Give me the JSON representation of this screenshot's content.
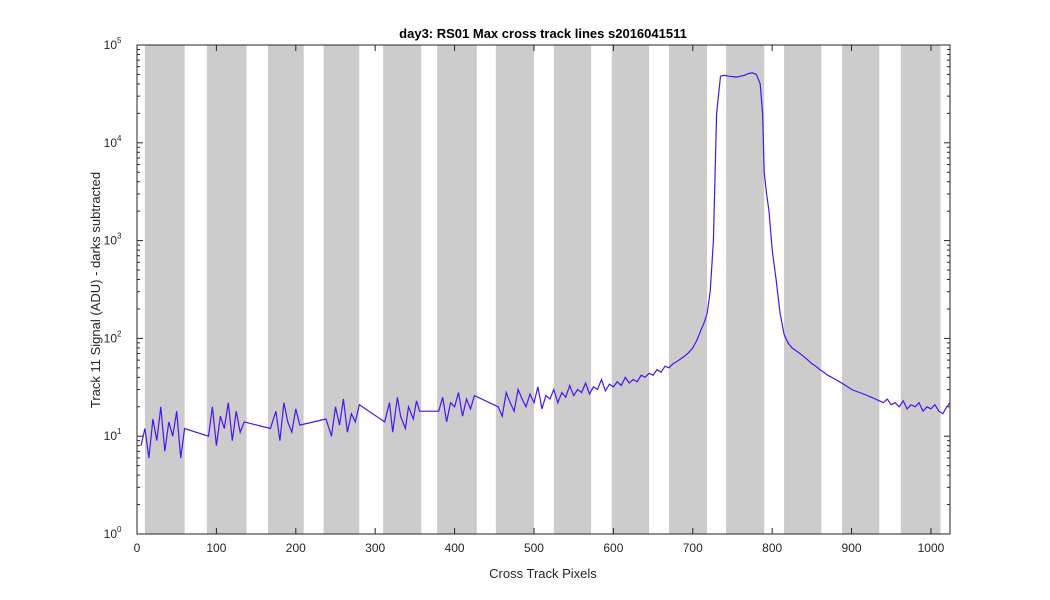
{
  "chart_data": {
    "type": "line",
    "title": "day3: RS01  Max cross track lines  s2016041511",
    "xlabel": "Cross Track Pixels",
    "ylabel": "Track 11 Signal (ADU) - darks subtracted",
    "xlim": [
      0,
      1024
    ],
    "ylim": [
      1,
      100000
    ],
    "yscale": "log",
    "grid": false,
    "x_ticks": [
      0,
      100,
      200,
      300,
      400,
      500,
      600,
      700,
      800,
      900,
      1000
    ],
    "y_ticks": [
      {
        "value": 1,
        "base": "10",
        "exp": "0"
      },
      {
        "value": 10,
        "base": "10",
        "exp": "1"
      },
      {
        "value": 100,
        "base": "10",
        "exp": "2"
      },
      {
        "value": 1000,
        "base": "10",
        "exp": "3"
      },
      {
        "value": 10000,
        "base": "10",
        "exp": "4"
      },
      {
        "value": 100000,
        "base": "10",
        "exp": "5"
      }
    ],
    "line_color": "#4b14f0",
    "shade_color": "#cccccc",
    "shaded_bands": [
      [
        10,
        60
      ],
      [
        88,
        138
      ],
      [
        165,
        210
      ],
      [
        235,
        280
      ],
      [
        310,
        358
      ],
      [
        378,
        428
      ],
      [
        452,
        500
      ],
      [
        525,
        572
      ],
      [
        598,
        645
      ],
      [
        670,
        718
      ],
      [
        742,
        790
      ],
      [
        815,
        862
      ],
      [
        888,
        935
      ],
      [
        962,
        1012
      ]
    ],
    "series": [
      {
        "values_description_free": true,
        "x": [
          5,
          10,
          15,
          20,
          25,
          30,
          35,
          40,
          45,
          50,
          55,
          60,
          90,
          95,
          100,
          105,
          110,
          115,
          120,
          125,
          130,
          135,
          168,
          175,
          180,
          185,
          190,
          195,
          200,
          205,
          238,
          245,
          250,
          255,
          260,
          265,
          270,
          275,
          280,
          312,
          318,
          322,
          328,
          332,
          338,
          342,
          348,
          352,
          356,
          380,
          385,
          390,
          395,
          400,
          405,
          410,
          415,
          420,
          425,
          455,
          460,
          465,
          470,
          475,
          480,
          485,
          490,
          495,
          500,
          505,
          510,
          515,
          520,
          525,
          530,
          535,
          540,
          545,
          550,
          555,
          560,
          565,
          570,
          575,
          580,
          585,
          590,
          595,
          600,
          605,
          610,
          615,
          620,
          625,
          630,
          635,
          640,
          645,
          650,
          655,
          660,
          665,
          670,
          675,
          680,
          685,
          690,
          695,
          700,
          705,
          710,
          715,
          718,
          722,
          726,
          730,
          735,
          740,
          745,
          750,
          755,
          760,
          765,
          770,
          775,
          780,
          785,
          788,
          790,
          793,
          796,
          800,
          805,
          810,
          815,
          820,
          825,
          830,
          835,
          840,
          845,
          850,
          855,
          860,
          865,
          870,
          875,
          880,
          885,
          890,
          895,
          900,
          905,
          910,
          915,
          920,
          925,
          930,
          935,
          940,
          945,
          950,
          955,
          960,
          965,
          970,
          975,
          980,
          985,
          990,
          995,
          1000,
          1005,
          1010,
          1015,
          1020,
          1024
        ],
        "y": [
          8,
          12,
          6,
          15,
          9,
          20,
          7,
          14,
          10,
          18,
          6,
          12,
          10,
          20,
          8,
          16,
          12,
          22,
          9,
          18,
          11,
          14,
          12,
          18,
          9,
          22,
          14,
          11,
          19,
          13,
          15,
          10,
          20,
          13,
          24,
          11,
          17,
          14,
          21,
          14,
          22,
          11,
          25,
          16,
          12,
          20,
          15,
          23,
          18,
          18,
          25,
          14,
          22,
          20,
          28,
          16,
          24,
          19,
          26,
          20,
          16,
          28,
          22,
          18,
          30,
          24,
          20,
          27,
          22,
          32,
          19,
          26,
          24,
          30,
          22,
          28,
          25,
          33,
          26,
          30,
          28,
          35,
          27,
          32,
          30,
          38,
          29,
          34,
          32,
          36,
          33,
          40,
          35,
          38,
          36,
          42,
          40,
          44,
          42,
          48,
          45,
          52,
          50,
          55,
          58,
          62,
          66,
          72,
          80,
          95,
          120,
          150,
          180,
          300,
          1000,
          20000,
          48000,
          49000,
          48000,
          47500,
          47000,
          48000,
          49000,
          51000,
          52000,
          50000,
          40000,
          20000,
          5000,
          3000,
          2000,
          800,
          400,
          180,
          110,
          90,
          80,
          75,
          70,
          65,
          60,
          55,
          52,
          48,
          45,
          42,
          40,
          38,
          36,
          34,
          32,
          30,
          29,
          28,
          27,
          26,
          25,
          24,
          23,
          22,
          24,
          21,
          22,
          20,
          23,
          19,
          21,
          20,
          22,
          18,
          20,
          19,
          21,
          18,
          17,
          20,
          22
        ]
      }
    ]
  }
}
